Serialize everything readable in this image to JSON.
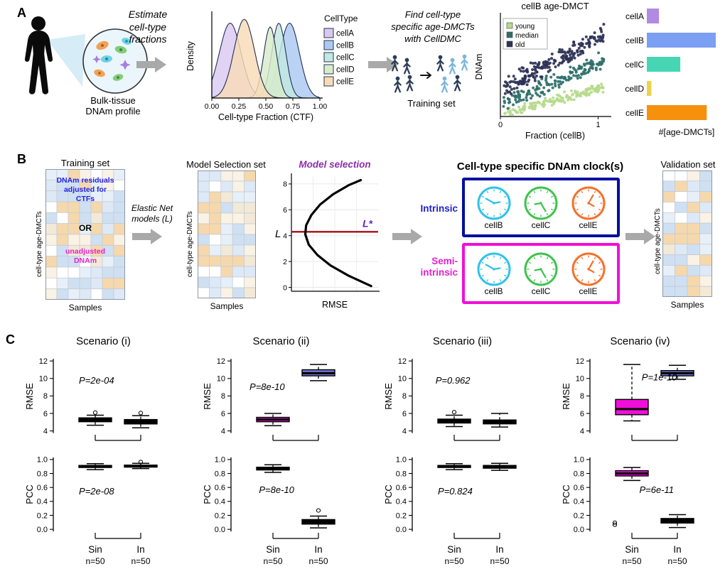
{
  "labels": {
    "A": "A",
    "B": "B",
    "C": "C"
  },
  "panelA": {
    "caption": "Bulk-tissue\nDNAm profile",
    "estimate": "Estimate\ncell-type\nfractions",
    "find": "Find cell-type\nspecific age-DMCTs\nwith CellDMC",
    "training_set": "Training set"
  },
  "panelB": {
    "training_title": "Training set",
    "selection_title": "Model Selection set",
    "validation_title": "Validation set",
    "samples": "Samples",
    "ylabel": "cell-type  age-DMCTs",
    "overlay_blue": "DNAm residuals\nadjusted for\nCTFs",
    "overlay_or": "OR",
    "overlay_magenta": "unadjusted\nDNAm",
    "elastic": "Elastic Net\nmodels (L)",
    "clocks_title": "Cell-type specific DNAm clock(s)",
    "intrinsic": "Intrinsic",
    "semi": "Semi-\nintrinsic",
    "clocks": [
      {
        "label": "cellB",
        "color": "#2fc3e8"
      },
      {
        "label": "cellC",
        "color": "#3fc24e"
      },
      {
        "label": "cellE",
        "color": "#f4712b"
      }
    ],
    "intrinsic_border": "#000f9e",
    "semi_border": "#f00fd8"
  },
  "chart_data": [
    {
      "id": "ctf_density",
      "type": "area",
      "xlabel": "Cell-type Fraction (CTF)",
      "ylabel": "Density",
      "xlim": [
        0,
        1
      ],
      "xticks": [
        "0.00",
        "0.25",
        "0.50",
        "0.75",
        "1.00"
      ],
      "legend_title": "CellType",
      "outline": "#232f55",
      "series": [
        {
          "name": "cellA",
          "mean": 0.17,
          "sd": 0.1,
          "peak": 1.0,
          "color": "#d9c9f0"
        },
        {
          "name": "cellB",
          "mean": 0.72,
          "sd": 0.09,
          "peak": 1.0,
          "color": "#abc9f1"
        },
        {
          "name": "cellC",
          "mean": 0.62,
          "sd": 0.065,
          "peak": 1.0,
          "color": "#c2e8e0"
        },
        {
          "name": "cellD",
          "mean": 0.54,
          "sd": 0.06,
          "peak": 0.95,
          "color": "#d8ecca"
        },
        {
          "name": "cellE",
          "mean": 0.3,
          "sd": 0.095,
          "peak": 1.05,
          "color": "#f8dcb7"
        }
      ]
    },
    {
      "id": "cellb_scatter",
      "type": "scatter",
      "title": "cellB age-DMCT",
      "xlabel": "Fraction (cellB)",
      "ylabel": "DNAm",
      "xlim": [
        0,
        1.12
      ],
      "ylim": [
        0,
        1.15
      ],
      "xticks": [
        0,
        1
      ],
      "seed": 9,
      "legend": [
        {
          "label": "young",
          "color": "#b6da8c"
        },
        {
          "label": "median",
          "color": "#2f6f69"
        },
        {
          "label": "old",
          "color": "#2c3156"
        }
      ],
      "groups": [
        {
          "name": "young",
          "color": "#b6da8c",
          "n": 150,
          "slope": 0.3,
          "intercept": 0.02,
          "noise": 0.07
        },
        {
          "name": "median",
          "color": "#2f6f69",
          "n": 160,
          "slope": 0.5,
          "intercept": 0.13,
          "noise": 0.11
        },
        {
          "name": "old",
          "color": "#2c3156",
          "n": 210,
          "slope": 0.62,
          "intercept": 0.3,
          "noise": 0.14
        }
      ]
    },
    {
      "id": "age_dmct_bars",
      "type": "bar",
      "xlabel": "#[age-DMCTs]",
      "categories": [
        "cellA",
        "cellB",
        "cellC",
        "cellD",
        "cellE"
      ],
      "values": [
        120,
        680,
        330,
        45,
        590
      ],
      "xmax": 700,
      "colors": [
        "#b18ae2",
        "#7b9ff2",
        "#46d6b4",
        "#ecd24b",
        "#f5910d"
      ]
    },
    {
      "id": "model_selection",
      "type": "line",
      "title": "Model selection",
      "title_color": "#8a2fa8",
      "xlabel": "RMSE",
      "ylabel": "L",
      "ylim": [
        -0.3,
        8.6
      ],
      "yticks": [
        0,
        2,
        4,
        6,
        8
      ],
      "curve": [
        [
          0.92,
          0.1
        ],
        [
          0.66,
          0.9
        ],
        [
          0.45,
          1.7
        ],
        [
          0.3,
          2.5
        ],
        [
          0.2,
          3.3
        ],
        [
          0.16,
          4.1
        ],
        [
          0.17,
          4.8
        ],
        [
          0.23,
          5.6
        ],
        [
          0.33,
          6.4
        ],
        [
          0.48,
          7.2
        ],
        [
          0.66,
          7.9
        ],
        [
          0.8,
          8.3
        ]
      ],
      "lstar": 4.3,
      "lstar_label": "L*",
      "lstar_color": "#5b1fd6",
      "line_color": "#a50f15"
    },
    {
      "id": "scenarios",
      "type": "boxgrid",
      "row_labels": [
        "RMSE",
        "PCC"
      ],
      "x_labels": [
        {
          "name": "Sin",
          "n": "n=50"
        },
        {
          "name": "In",
          "n": "n=50"
        }
      ],
      "rmse_axis": {
        "ylim": [
          3.4,
          12.5
        ],
        "ticks": [
          4,
          6,
          8,
          10,
          12
        ]
      },
      "pcc_axis": {
        "ylim": [
          -0.07,
          1.07
        ],
        "ticks": [
          "0.0",
          "0.2",
          "0.4",
          "0.6",
          "0.8",
          "1.0"
        ]
      },
      "scenarios": [
        {
          "title": "Scenario (i)",
          "rmse": {
            "p": "P=2e-04",
            "p_pos": [
              0.18,
              0.34
            ],
            "boxes": [
              {
                "fill": "#000000",
                "median": 5.25,
                "q1": 5.05,
                "q3": 5.5,
                "lo": 4.65,
                "hi": 5.8,
                "outliers": [
                  6.1
                ]
              },
              {
                "fill": "#000000",
                "median": 5.05,
                "q1": 4.8,
                "q3": 5.3,
                "lo": 4.35,
                "hi": 5.75,
                "outliers": [
                  6.05
                ]
              }
            ]
          },
          "pcc": {
            "p": "P=2e-08",
            "p_pos": [
              0.18,
              0.5
            ],
            "boxes": [
              {
                "fill": "#000000",
                "median": 0.9,
                "q1": 0.885,
                "q3": 0.915,
                "lo": 0.855,
                "hi": 0.94,
                "outliers": []
              },
              {
                "fill": "#000000",
                "median": 0.905,
                "q1": 0.89,
                "q3": 0.92,
                "lo": 0.87,
                "hi": 0.945,
                "outliers": [
                  0.965
                ]
              }
            ]
          }
        },
        {
          "title": "Scenario (ii)",
          "rmse": {
            "p": "P=8e-10",
            "p_pos": [
              0.12,
              0.42
            ],
            "boxes": [
              {
                "fill": "#e81fd0",
                "median": 5.3,
                "q1": 5.05,
                "q3": 5.55,
                "lo": 4.6,
                "hi": 6.0,
                "outliers": []
              },
              {
                "fill": "#7177d0",
                "median": 10.6,
                "q1": 10.3,
                "q3": 11.0,
                "lo": 9.75,
                "hi": 11.6,
                "outliers": []
              }
            ]
          },
          "pcc": {
            "p": "P=8e-10",
            "p_pos": [
              0.2,
              0.48
            ],
            "boxes": [
              {
                "fill": "#e81fd0",
                "median": 0.87,
                "q1": 0.85,
                "q3": 0.89,
                "lo": 0.815,
                "hi": 0.925,
                "outliers": []
              },
              {
                "fill": "#000000",
                "median": 0.105,
                "q1": 0.075,
                "q3": 0.14,
                "lo": 0.02,
                "hi": 0.19,
                "outliers": [
                  0.27
                ]
              }
            ]
          }
        },
        {
          "title": "Scenario (iii)",
          "rmse": {
            "p": "P=0.962",
            "p_pos": [
              0.16,
              0.34
            ],
            "boxes": [
              {
                "fill": "#000000",
                "median": 5.1,
                "q1": 4.9,
                "q3": 5.35,
                "lo": 4.5,
                "hi": 5.8,
                "outliers": [
                  6.15
                ]
              },
              {
                "fill": "#000000",
                "median": 5.0,
                "q1": 4.8,
                "q3": 5.25,
                "lo": 4.45,
                "hi": 6.0,
                "outliers": []
              }
            ]
          },
          "pcc": {
            "p": "P=0.824",
            "p_pos": [
              0.18,
              0.5
            ],
            "boxes": [
              {
                "fill": "#000000",
                "median": 0.9,
                "q1": 0.885,
                "q3": 0.915,
                "lo": 0.855,
                "hi": 0.94,
                "outliers": []
              },
              {
                "fill": "#000000",
                "median": 0.895,
                "q1": 0.875,
                "q3": 0.915,
                "lo": 0.845,
                "hi": 0.945,
                "outliers": []
              }
            ]
          }
        },
        {
          "title": "Scenario (iv)",
          "rmse": {
            "p": "P=1e-10",
            "p_pos": [
              0.4,
              0.3
            ],
            "boxes": [
              {
                "fill": "#f00fd8",
                "median": 6.5,
                "q1": 5.85,
                "q3": 7.6,
                "lo": 5.15,
                "hi": 11.6,
                "outliers": []
              },
              {
                "fill": "#7177d0",
                "median": 10.6,
                "q1": 10.3,
                "q3": 10.9,
                "lo": 9.9,
                "hi": 11.5,
                "outliers": []
              }
            ]
          },
          "pcc": {
            "p": "P=6e-11",
            "p_pos": [
              0.38,
              0.48
            ],
            "boxes": [
              {
                "fill": "#f00fd8",
                "median": 0.8,
                "q1": 0.765,
                "q3": 0.84,
                "lo": 0.7,
                "hi": 0.885,
                "outliers": [
                  0.095,
                  0.065
                ],
                "outlier_dx": -24
              },
              {
                "fill": "#000000",
                "median": 0.12,
                "q1": 0.09,
                "q3": 0.155,
                "lo": 0.025,
                "hi": 0.21,
                "outliers": []
              }
            ]
          }
        }
      ]
    },
    {
      "id": "training_heatmap",
      "type": "heatmap",
      "cols": 7,
      "rows": 12,
      "seed": 5
    },
    {
      "id": "selection_heatmap",
      "type": "heatmap",
      "cols": 5,
      "rows": 12,
      "seed": 11
    },
    {
      "id": "validation_heatmap",
      "type": "heatmap",
      "cols": 4,
      "rows": 12,
      "seed": 23
    }
  ]
}
